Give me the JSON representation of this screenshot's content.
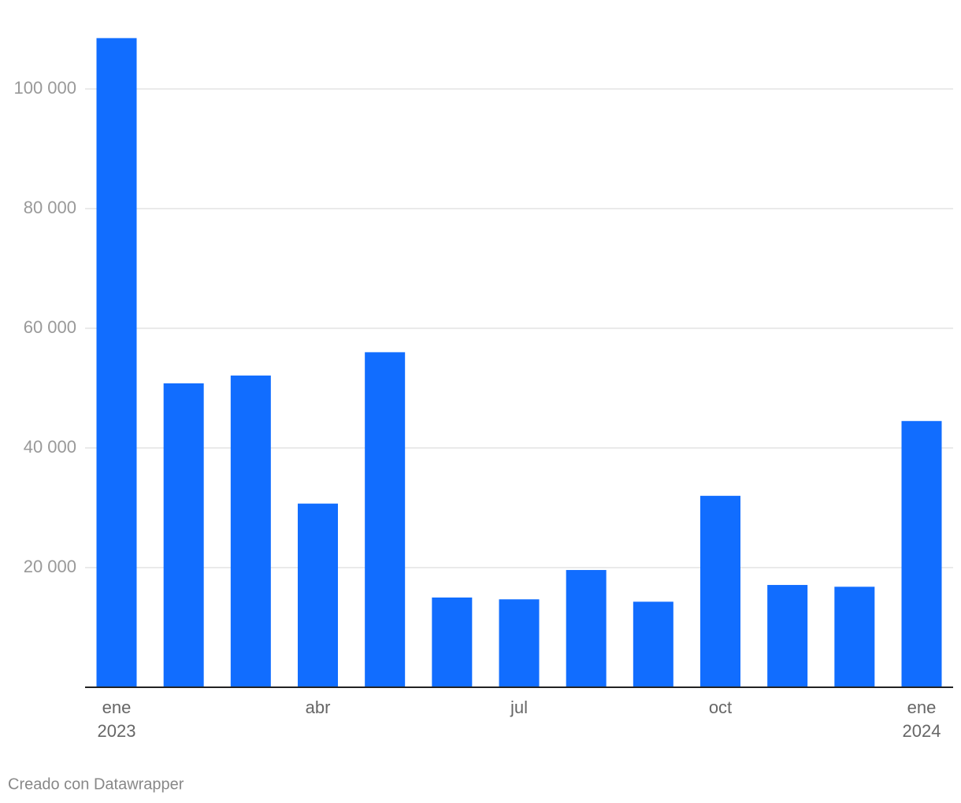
{
  "chart_data": {
    "type": "bar",
    "categories": [
      "ene 2023",
      null,
      null,
      "abr",
      null,
      null,
      "jul",
      null,
      null,
      "oct",
      null,
      null,
      "ene 2024"
    ],
    "values": [
      108500,
      50800,
      52100,
      30700,
      56000,
      15000,
      14700,
      19600,
      14300,
      32000,
      17100,
      16800,
      44500
    ],
    "color": "#116dff",
    "ylim": [
      0,
      110000
    ],
    "yticks": [
      {
        "value": 20000,
        "label": "20 000"
      },
      {
        "value": 40000,
        "label": "40 000"
      },
      {
        "value": 60000,
        "label": "60 000"
      },
      {
        "value": 80000,
        "label": "80 000"
      },
      {
        "value": 100000,
        "label": "100 000"
      }
    ],
    "grid": true,
    "footer": "Creado con Datawrapper"
  }
}
